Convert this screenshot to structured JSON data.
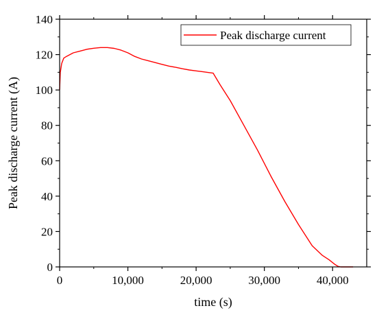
{
  "chart_data": {
    "type": "line",
    "xlabel": "time (s)",
    "ylabel": "Peak discharge current (A)",
    "xlim": [
      0,
      45000
    ],
    "ylim": [
      0,
      140
    ],
    "xticks": [
      0,
      10000,
      20000,
      30000,
      40000
    ],
    "xtick_labels": [
      "0",
      "10,000",
      "20,000",
      "30,000",
      "40,000"
    ],
    "yticks": [
      0,
      20,
      40,
      60,
      80,
      100,
      120,
      140
    ],
    "ytick_labels": [
      "0",
      "20",
      "40",
      "60",
      "80",
      "100",
      "120",
      "140"
    ],
    "grid": false,
    "legend_position": "top-right",
    "series": [
      {
        "name": "Peak discharge current",
        "color": "#ff0000",
        "x": [
          0,
          100,
          300,
          600,
          1000,
          2000,
          3000,
          4000,
          5000,
          6000,
          7000,
          8000,
          9000,
          10000,
          11000,
          12000,
          13000,
          14000,
          15000,
          16000,
          17000,
          18000,
          19000,
          20000,
          21000,
          22000,
          22500,
          23500,
          25000,
          27000,
          29000,
          31000,
          33000,
          35000,
          37000,
          38500,
          39500,
          40300,
          40800,
          41200,
          42000,
          43000
        ],
        "y": [
          100,
          110,
          115,
          118,
          119,
          121,
          122,
          123,
          123.6,
          124,
          124,
          123.5,
          122.5,
          121,
          119,
          117.5,
          116.5,
          115.5,
          114.5,
          113.5,
          112.8,
          112,
          111.3,
          110.8,
          110.3,
          109.8,
          109.5,
          103,
          94,
          80,
          66,
          51,
          37,
          24,
          12,
          6.5,
          4,
          1.5,
          0.3,
          0,
          0,
          0
        ]
      }
    ]
  }
}
